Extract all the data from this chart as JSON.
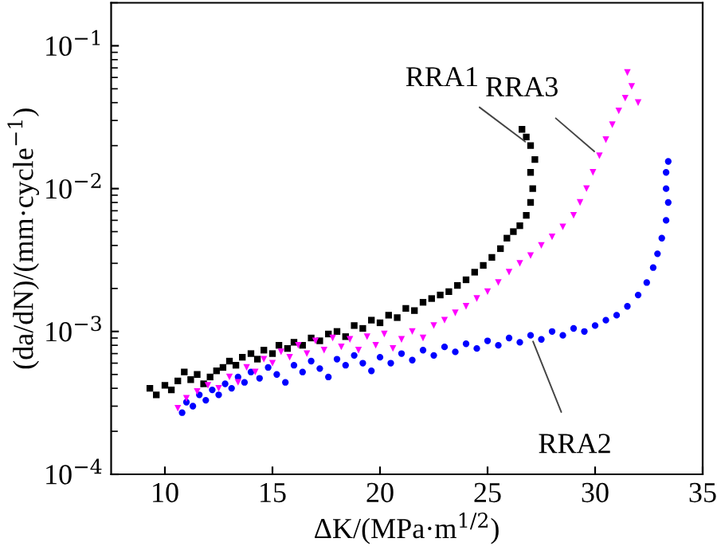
{
  "chart_data": {
    "type": "scatter",
    "xlabel": "ΔK/(MPa·m$^{1/2}$)",
    "ylabel": "(da/dN)/(mm·cycle$^{−1}$)",
    "log": "y",
    "xlim": [
      7.5,
      35
    ],
    "xticks": [
      10,
      15,
      20,
      25,
      30,
      35
    ],
    "ylim": [
      0.0001,
      0.2
    ],
    "yticks": [
      {
        "value": 0.0001,
        "label": "10$^{−4}$"
      },
      {
        "value": 0.001,
        "label": "10$^{−3}$"
      },
      {
        "value": 0.01,
        "label": "10$^{−2}$"
      },
      {
        "value": 0.1,
        "label": "10$^{−1}$"
      }
    ],
    "grid": false,
    "legend": false,
    "series": [
      {
        "name": "RRA1",
        "color": "#000000",
        "marker": "square",
        "x": [
          9.3,
          9.6,
          10.0,
          10.3,
          10.6,
          10.9,
          11.2,
          11.5,
          11.8,
          12.1,
          12.4,
          12.7,
          13.0,
          13.3,
          13.6,
          14.0,
          14.3,
          14.6,
          15.0,
          15.3,
          15.7,
          16.0,
          16.4,
          16.8,
          17.2,
          17.6,
          18.0,
          18.4,
          18.8,
          19.2,
          19.6,
          20.0,
          20.4,
          20.8,
          21.2,
          21.6,
          22.0,
          22.4,
          22.8,
          23.2,
          23.6,
          24.0,
          24.4,
          24.8,
          25.2,
          25.6,
          25.9,
          26.2,
          26.5,
          26.8,
          27.0,
          27.1,
          27.0,
          27.2,
          27.0,
          26.8,
          26.6
        ],
        "values": [
          0.0004,
          0.00036,
          0.00042,
          0.00039,
          0.00045,
          0.00052,
          0.00046,
          0.0005,
          0.00043,
          0.00048,
          0.00053,
          0.00056,
          0.00062,
          0.00058,
          0.00066,
          0.0007,
          0.00064,
          0.00074,
          0.0007,
          0.0008,
          0.00076,
          0.00084,
          0.0008,
          0.0009,
          0.00086,
          0.00096,
          0.001,
          0.00092,
          0.0011,
          0.00105,
          0.0012,
          0.00115,
          0.0013,
          0.00125,
          0.00145,
          0.0014,
          0.0016,
          0.0017,
          0.0018,
          0.0019,
          0.0021,
          0.0023,
          0.0026,
          0.0029,
          0.0033,
          0.0038,
          0.0045,
          0.005,
          0.0055,
          0.0065,
          0.008,
          0.01,
          0.013,
          0.016,
          0.02,
          0.023,
          0.026
        ]
      },
      {
        "name": "RRA2",
        "color": "#0000ff",
        "marker": "circle",
        "x": [
          10.8,
          11.0,
          11.3,
          11.6,
          11.9,
          12.2,
          12.5,
          12.8,
          13.1,
          13.4,
          13.7,
          14.0,
          14.4,
          14.8,
          15.2,
          15.6,
          16.0,
          16.4,
          16.8,
          17.2,
          17.6,
          18.0,
          18.4,
          18.8,
          19.2,
          19.6,
          20.0,
          20.5,
          21.0,
          21.5,
          22.0,
          22.5,
          23.0,
          23.5,
          24.0,
          24.5,
          25.0,
          25.5,
          26.0,
          26.5,
          27.0,
          27.5,
          28.0,
          28.5,
          29.0,
          29.5,
          30.0,
          30.5,
          31.0,
          31.5,
          32.0,
          32.4,
          32.7,
          32.9,
          33.1,
          33.3,
          33.4,
          33.3,
          33.3,
          33.4
        ],
        "values": [
          0.00027,
          0.00032,
          0.0003,
          0.00036,
          0.00033,
          0.00039,
          0.00036,
          0.00043,
          0.0004,
          0.00048,
          0.00044,
          0.00052,
          0.00047,
          0.00056,
          0.0005,
          0.00044,
          0.00058,
          0.00052,
          0.00062,
          0.00055,
          0.00048,
          0.00064,
          0.00058,
          0.00068,
          0.0006,
          0.00053,
          0.00066,
          0.0006,
          0.0007,
          0.00063,
          0.00074,
          0.00068,
          0.00078,
          0.00072,
          0.00082,
          0.00076,
          0.00086,
          0.0008,
          0.0009,
          0.00084,
          0.00094,
          0.00088,
          0.001,
          0.00094,
          0.00105,
          0.001,
          0.0011,
          0.0012,
          0.0013,
          0.0015,
          0.0018,
          0.0022,
          0.0028,
          0.0035,
          0.0045,
          0.006,
          0.008,
          0.01,
          0.013,
          0.0155
        ]
      },
      {
        "name": "RRA3",
        "color": "#ff00ff",
        "marker": "triangle",
        "x": [
          10.6,
          11.0,
          11.5,
          12.0,
          12.5,
          13.0,
          13.4,
          13.8,
          14.2,
          14.6,
          15.0,
          15.4,
          15.8,
          16.2,
          16.6,
          17.0,
          17.4,
          17.8,
          18.2,
          18.6,
          19.0,
          19.4,
          19.8,
          20.2,
          20.6,
          21.0,
          21.5,
          22.0,
          22.5,
          23.0,
          23.5,
          24.0,
          24.5,
          25.0,
          25.5,
          26.0,
          26.5,
          27.0,
          27.5,
          28.0,
          28.5,
          29.0,
          29.3,
          29.6,
          29.9,
          30.2,
          30.5,
          30.8,
          31.1,
          31.4,
          32.0,
          31.7,
          31.5
        ],
        "values": [
          0.00029,
          0.00034,
          0.00038,
          0.00042,
          0.0004,
          0.00048,
          0.00044,
          0.00056,
          0.00052,
          0.00064,
          0.0006,
          0.00072,
          0.00066,
          0.0008,
          0.0007,
          0.00086,
          0.00074,
          0.0009,
          0.00078,
          0.00088,
          0.00074,
          0.00092,
          0.0008,
          0.00096,
          0.00076,
          0.00088,
          0.001,
          0.0009,
          0.0011,
          0.0012,
          0.00135,
          0.0015,
          0.0017,
          0.0019,
          0.0022,
          0.0026,
          0.003,
          0.0034,
          0.004,
          0.0046,
          0.0054,
          0.0065,
          0.008,
          0.01,
          0.013,
          0.017,
          0.022,
          0.028,
          0.035,
          0.043,
          0.04,
          0.052,
          0.065
        ]
      }
    ]
  }
}
